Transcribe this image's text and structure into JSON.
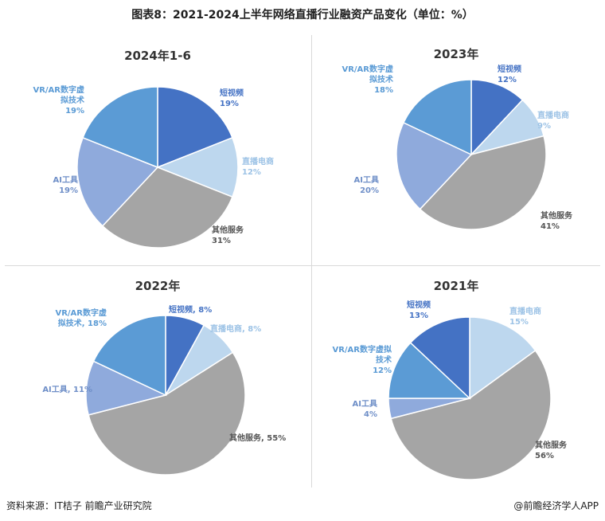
{
  "title": "图表8：2021-2024上半年网络直播行业融资产品变化（单位：%）",
  "footer": {
    "source": "资料来源：IT桔子 前瞻产业研究院",
    "brand": "@前瞻经济学人APP"
  },
  "colors": {
    "short_video": "#4472c4",
    "live_ecommerce": "#bdd7ee",
    "other_services": "#a5a5a5",
    "ai_tools": "#8faadc",
    "vr_ar": "#5b9bd5"
  },
  "chart_data": [
    {
      "type": "pie",
      "title": "2024年1-6",
      "slices": [
        {
          "name": "短视频",
          "value": 19,
          "label": "19%",
          "color": "#4472c4",
          "label_color": "#4472c4"
        },
        {
          "name": "直播电商",
          "value": 12,
          "label": "12%",
          "color": "#bdd7ee",
          "label_color": "#9dc3e6"
        },
        {
          "name": "其他服务",
          "value": 31,
          "label": "31%",
          "color": "#a5a5a5",
          "label_color": "#555555"
        },
        {
          "name": "AI工具",
          "value": 19,
          "label": "19%",
          "color": "#8faadc",
          "label_color": "#6f8fc8"
        },
        {
          "name": "VR/AR数字虚拟技术",
          "value": 19,
          "label": "19%",
          "color": "#5b9bd5",
          "label_color": "#5b9bd5"
        }
      ]
    },
    {
      "type": "pie",
      "title": "2023年",
      "slices": [
        {
          "name": "短视频",
          "value": 12,
          "label": "12%",
          "color": "#4472c4",
          "label_color": "#4472c4"
        },
        {
          "name": "直播电商",
          "value": 9,
          "label": "9%",
          "color": "#bdd7ee",
          "label_color": "#9dc3e6"
        },
        {
          "name": "其他服务",
          "value": 41,
          "label": "41%",
          "color": "#a5a5a5",
          "label_color": "#555555"
        },
        {
          "name": "AI工具",
          "value": 20,
          "label": "20%",
          "color": "#8faadc",
          "label_color": "#6f8fc8"
        },
        {
          "name": "VR/AR数字虚拟技术",
          "value": 18,
          "label": "18%",
          "color": "#5b9bd5",
          "label_color": "#5b9bd5"
        }
      ]
    },
    {
      "type": "pie",
      "title": "2022年",
      "slices": [
        {
          "name": "短视频",
          "value": 8,
          "label": "8%",
          "color": "#4472c4",
          "label_color": "#4472c4"
        },
        {
          "name": "直播电商",
          "value": 8,
          "label": "8%",
          "color": "#bdd7ee",
          "label_color": "#9dc3e6"
        },
        {
          "name": "其他服务",
          "value": 55,
          "label": "55%",
          "color": "#a5a5a5",
          "label_color": "#555555"
        },
        {
          "name": "AI工具",
          "value": 11,
          "label": "11%",
          "color": "#8faadc",
          "label_color": "#6f8fc8"
        },
        {
          "name": "VR/AR数字虚拟技术",
          "value": 18,
          "label": "18%",
          "color": "#5b9bd5",
          "label_color": "#5b9bd5"
        }
      ]
    },
    {
      "type": "pie",
      "title": "2021年",
      "slices": [
        {
          "name": "直播电商",
          "value": 15,
          "label": "15%",
          "color": "#bdd7ee",
          "label_color": "#9dc3e6"
        },
        {
          "name": "其他服务",
          "value": 56,
          "label": "56%",
          "color": "#a5a5a5",
          "label_color": "#555555"
        },
        {
          "name": "AI工具",
          "value": 4,
          "label": "4%",
          "color": "#8faadc",
          "label_color": "#6f8fc8"
        },
        {
          "name": "VR/AR数字虚拟技术",
          "value": 12,
          "label": "12%",
          "color": "#5b9bd5",
          "label_color": "#5b9bd5"
        },
        {
          "name": "短视频",
          "value": 13,
          "label": "13%",
          "color": "#4472c4",
          "label_color": "#4472c4"
        }
      ]
    }
  ]
}
